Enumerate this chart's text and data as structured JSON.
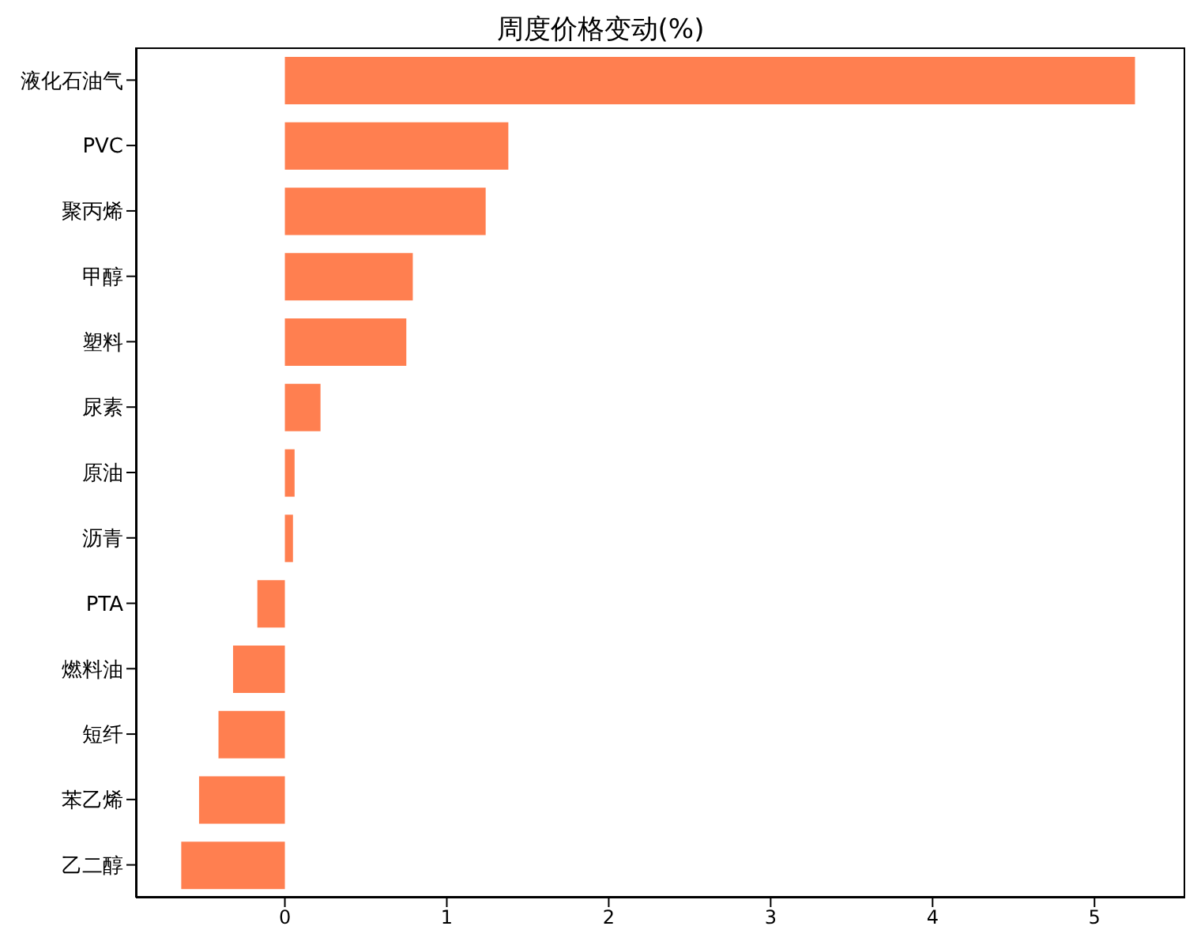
{
  "chart_data": {
    "type": "bar",
    "orientation": "horizontal",
    "title": "周度价格变动(%)",
    "categories": [
      "液化石油气",
      "PVC",
      "聚丙烯",
      "甲醇",
      "塑料",
      "尿素",
      "原油",
      "沥青",
      "PTA",
      "燃料油",
      "短纤",
      "苯乙烯",
      "乙二醇"
    ],
    "values": [
      5.25,
      1.38,
      1.24,
      0.79,
      0.75,
      0.22,
      0.06,
      0.05,
      -0.17,
      -0.32,
      -0.41,
      -0.53,
      -0.64
    ],
    "color": "#ff7f50",
    "xlim": [
      -0.92,
      5.56
    ],
    "xticks": [
      0,
      1,
      2,
      3,
      4,
      5
    ]
  }
}
